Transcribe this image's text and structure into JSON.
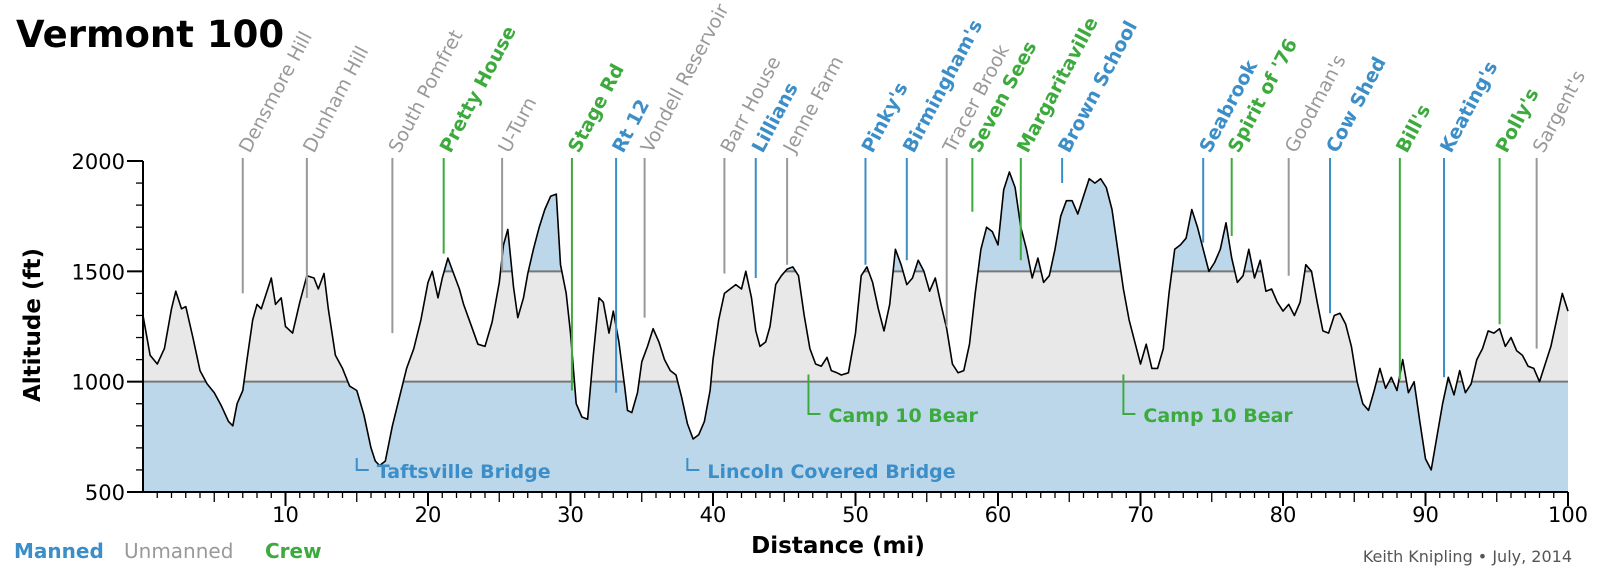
{
  "title": "Vermont 100",
  "credit": "Keith Knipling • July, 2014",
  "legend": [
    {
      "label": "Manned",
      "color": "#3b8ec8",
      "bold": true
    },
    {
      "label": "Unmanned",
      "color": "#999999",
      "bold": false
    },
    {
      "label": "Crew",
      "color": "#3daa3d",
      "bold": true
    }
  ],
  "colors": {
    "manned": "#3b8ec8",
    "unmanned": "#999999",
    "crew": "#3daa3d",
    "fill_blue": "#bdd7ea",
    "fill_gray": "#e8e8e8",
    "band_line": "#777777"
  },
  "chart_data": {
    "type": "area",
    "title": "Vermont 100",
    "xlabel": "Distance  (mi)",
    "ylabel": "Altitude  (ft)",
    "xlim": [
      0,
      100
    ],
    "ylim": [
      500,
      2000
    ],
    "xticks": [
      10,
      20,
      30,
      40,
      50,
      60,
      70,
      80,
      90,
      100
    ],
    "yticks": [
      500,
      1000,
      1500,
      2000
    ],
    "x_minor_step": 1,
    "y_minor_step": 100,
    "bands": [
      1000,
      1500
    ],
    "profile": [
      [
        0,
        1300
      ],
      [
        0.5,
        1120
      ],
      [
        1,
        1080
      ],
      [
        1.5,
        1150
      ],
      [
        2,
        1330
      ],
      [
        2.3,
        1410
      ],
      [
        2.7,
        1330
      ],
      [
        3,
        1340
      ],
      [
        3.5,
        1200
      ],
      [
        4,
        1050
      ],
      [
        4.5,
        990
      ],
      [
        5,
        950
      ],
      [
        5.5,
        890
      ],
      [
        6,
        820
      ],
      [
        6.3,
        800
      ],
      [
        6.6,
        900
      ],
      [
        7,
        960
      ],
      [
        7.3,
        1100
      ],
      [
        7.7,
        1280
      ],
      [
        8,
        1350
      ],
      [
        8.3,
        1330
      ],
      [
        8.7,
        1410
      ],
      [
        9,
        1470
      ],
      [
        9.3,
        1350
      ],
      [
        9.7,
        1380
      ],
      [
        10,
        1250
      ],
      [
        10.5,
        1220
      ],
      [
        11,
        1360
      ],
      [
        11.5,
        1480
      ],
      [
        12,
        1470
      ],
      [
        12.3,
        1420
      ],
      [
        12.7,
        1490
      ],
      [
        13,
        1330
      ],
      [
        13.5,
        1120
      ],
      [
        14,
        1060
      ],
      [
        14.5,
        980
      ],
      [
        15,
        960
      ],
      [
        15.5,
        850
      ],
      [
        16,
        700
      ],
      [
        16.3,
        640
      ],
      [
        16.6,
        620
      ],
      [
        17,
        640
      ],
      [
        17.5,
        800
      ],
      [
        18,
        930
      ],
      [
        18.5,
        1060
      ],
      [
        19,
        1150
      ],
      [
        19.5,
        1280
      ],
      [
        20,
        1450
      ],
      [
        20.3,
        1500
      ],
      [
        20.7,
        1380
      ],
      [
        21,
        1470
      ],
      [
        21.4,
        1560
      ],
      [
        21.8,
        1490
      ],
      [
        22.2,
        1420
      ],
      [
        22.5,
        1350
      ],
      [
        23,
        1260
      ],
      [
        23.5,
        1170
      ],
      [
        24,
        1160
      ],
      [
        24.5,
        1270
      ],
      [
        25,
        1450
      ],
      [
        25.3,
        1620
      ],
      [
        25.6,
        1690
      ],
      [
        26,
        1430
      ],
      [
        26.3,
        1290
      ],
      [
        26.7,
        1380
      ],
      [
        27,
        1490
      ],
      [
        27.4,
        1600
      ],
      [
        27.8,
        1700
      ],
      [
        28.2,
        1780
      ],
      [
        28.6,
        1840
      ],
      [
        29,
        1850
      ],
      [
        29.3,
        1530
      ],
      [
        29.7,
        1400
      ],
      [
        30,
        1220
      ],
      [
        30.4,
        900
      ],
      [
        30.8,
        840
      ],
      [
        31.2,
        830
      ],
      [
        31.6,
        1120
      ],
      [
        32,
        1380
      ],
      [
        32.3,
        1360
      ],
      [
        32.7,
        1220
      ],
      [
        33,
        1320
      ],
      [
        33.4,
        1180
      ],
      [
        33.8,
        980
      ],
      [
        34,
        870
      ],
      [
        34.3,
        860
      ],
      [
        34.7,
        950
      ],
      [
        35,
        1090
      ],
      [
        35.4,
        1160
      ],
      [
        35.8,
        1240
      ],
      [
        36.2,
        1180
      ],
      [
        36.6,
        1100
      ],
      [
        37,
        1050
      ],
      [
        37.4,
        1030
      ],
      [
        37.8,
        930
      ],
      [
        38.2,
        810
      ],
      [
        38.6,
        740
      ],
      [
        39,
        760
      ],
      [
        39.4,
        820
      ],
      [
        39.8,
        960
      ],
      [
        40,
        1100
      ],
      [
        40.4,
        1280
      ],
      [
        40.8,
        1400
      ],
      [
        41.2,
        1420
      ],
      [
        41.6,
        1440
      ],
      [
        42,
        1420
      ],
      [
        42.3,
        1500
      ],
      [
        42.7,
        1380
      ],
      [
        43,
        1230
      ],
      [
        43.3,
        1160
      ],
      [
        43.7,
        1180
      ],
      [
        44,
        1250
      ],
      [
        44.4,
        1440
      ],
      [
        44.8,
        1480
      ],
      [
        45.2,
        1510
      ],
      [
        45.6,
        1520
      ],
      [
        46,
        1480
      ],
      [
        46.4,
        1300
      ],
      [
        46.8,
        1150
      ],
      [
        47.2,
        1080
      ],
      [
        47.6,
        1070
      ],
      [
        48,
        1110
      ],
      [
        48.3,
        1050
      ],
      [
        48.7,
        1040
      ],
      [
        49,
        1030
      ],
      [
        49.5,
        1040
      ],
      [
        50,
        1220
      ],
      [
        50.4,
        1480
      ],
      [
        50.8,
        1520
      ],
      [
        51.2,
        1450
      ],
      [
        51.6,
        1330
      ],
      [
        52,
        1230
      ],
      [
        52.4,
        1350
      ],
      [
        52.8,
        1600
      ],
      [
        53.2,
        1530
      ],
      [
        53.6,
        1440
      ],
      [
        54,
        1470
      ],
      [
        54.4,
        1550
      ],
      [
        54.8,
        1500
      ],
      [
        55.2,
        1410
      ],
      [
        55.6,
        1470
      ],
      [
        56,
        1350
      ],
      [
        56.4,
        1240
      ],
      [
        56.8,
        1080
      ],
      [
        57.2,
        1040
      ],
      [
        57.6,
        1050
      ],
      [
        58,
        1170
      ],
      [
        58.4,
        1400
      ],
      [
        58.8,
        1600
      ],
      [
        59.2,
        1700
      ],
      [
        59.6,
        1680
      ],
      [
        60,
        1620
      ],
      [
        60.4,
        1870
      ],
      [
        60.8,
        1950
      ],
      [
        61.2,
        1880
      ],
      [
        61.6,
        1700
      ],
      [
        62,
        1600
      ],
      [
        62.4,
        1470
      ],
      [
        62.8,
        1560
      ],
      [
        63.2,
        1450
      ],
      [
        63.6,
        1480
      ],
      [
        64,
        1600
      ],
      [
        64.4,
        1750
      ],
      [
        64.8,
        1820
      ],
      [
        65.2,
        1820
      ],
      [
        65.6,
        1760
      ],
      [
        66,
        1840
      ],
      [
        66.4,
        1920
      ],
      [
        66.8,
        1900
      ],
      [
        67.2,
        1920
      ],
      [
        67.6,
        1880
      ],
      [
        68,
        1780
      ],
      [
        68.4,
        1600
      ],
      [
        68.8,
        1420
      ],
      [
        69.2,
        1280
      ],
      [
        69.6,
        1180
      ],
      [
        70,
        1080
      ],
      [
        70.4,
        1170
      ],
      [
        70.8,
        1060
      ],
      [
        71.2,
        1060
      ],
      [
        71.6,
        1150
      ],
      [
        72,
        1400
      ],
      [
        72.4,
        1600
      ],
      [
        72.8,
        1620
      ],
      [
        73.2,
        1650
      ],
      [
        73.6,
        1780
      ],
      [
        74,
        1700
      ],
      [
        74.4,
        1600
      ],
      [
        74.8,
        1500
      ],
      [
        75.2,
        1540
      ],
      [
        75.6,
        1600
      ],
      [
        76,
        1720
      ],
      [
        76.4,
        1560
      ],
      [
        76.8,
        1450
      ],
      [
        77.2,
        1480
      ],
      [
        77.6,
        1600
      ],
      [
        78,
        1470
      ],
      [
        78.4,
        1550
      ],
      [
        78.8,
        1410
      ],
      [
        79.2,
        1420
      ],
      [
        79.6,
        1360
      ],
      [
        80,
        1320
      ],
      [
        80.4,
        1350
      ],
      [
        80.8,
        1300
      ],
      [
        81.2,
        1360
      ],
      [
        81.6,
        1530
      ],
      [
        82,
        1500
      ],
      [
        82.4,
        1360
      ],
      [
        82.8,
        1230
      ],
      [
        83.2,
        1220
      ],
      [
        83.6,
        1300
      ],
      [
        84,
        1310
      ],
      [
        84.4,
        1260
      ],
      [
        84.8,
        1160
      ],
      [
        85.2,
        1000
      ],
      [
        85.6,
        900
      ],
      [
        86,
        870
      ],
      [
        86.4,
        960
      ],
      [
        86.8,
        1060
      ],
      [
        87.2,
        970
      ],
      [
        87.6,
        1020
      ],
      [
        88,
        960
      ],
      [
        88.4,
        1100
      ],
      [
        88.8,
        950
      ],
      [
        89.2,
        1000
      ],
      [
        89.6,
        820
      ],
      [
        90,
        650
      ],
      [
        90.4,
        600
      ],
      [
        90.8,
        750
      ],
      [
        91.2,
        900
      ],
      [
        91.6,
        1020
      ],
      [
        92,
        940
      ],
      [
        92.4,
        1050
      ],
      [
        92.8,
        950
      ],
      [
        93.2,
        990
      ],
      [
        93.6,
        1100
      ],
      [
        94,
        1150
      ],
      [
        94.4,
        1230
      ],
      [
        94.8,
        1220
      ],
      [
        95.2,
        1240
      ],
      [
        95.6,
        1160
      ],
      [
        96,
        1200
      ],
      [
        96.4,
        1140
      ],
      [
        96.8,
        1120
      ],
      [
        97.2,
        1070
      ],
      [
        97.6,
        1060
      ],
      [
        98,
        1000
      ],
      [
        98.4,
        1080
      ],
      [
        98.8,
        1160
      ],
      [
        99.2,
        1280
      ],
      [
        99.6,
        1400
      ],
      [
        100,
        1320
      ]
    ],
    "stations": [
      {
        "name": "Densmore Hill",
        "mile": 7.0,
        "type": "unmanned",
        "lineFrom": 1400
      },
      {
        "name": "Dunham Hill",
        "mile": 11.5,
        "type": "unmanned",
        "lineFrom": 1380
      },
      {
        "name": "South Pomfret",
        "mile": 17.5,
        "type": "unmanned",
        "lineFrom": 1220
      },
      {
        "name": "Pretty House",
        "mile": 21.1,
        "type": "crew",
        "lineFrom": 1580
      },
      {
        "name": "U-Turn",
        "mile": 25.2,
        "type": "unmanned",
        "lineFrom": 1500
      },
      {
        "name": "Stage Rd",
        "mile": 30.1,
        "type": "crew",
        "lineFrom": 960
      },
      {
        "name": "Rt 12",
        "mile": 33.2,
        "type": "manned",
        "lineFrom": 950
      },
      {
        "name": "Vondell Reservoir",
        "mile": 35.2,
        "type": "unmanned",
        "lineFrom": 1290
      },
      {
        "name": "Barr House",
        "mile": 40.8,
        "type": "unmanned",
        "lineFrom": 1490
      },
      {
        "name": "Lillians",
        "mile": 43.0,
        "type": "manned",
        "lineFrom": 1470
      },
      {
        "name": "Jenne Farm",
        "mile": 45.2,
        "type": "unmanned",
        "lineFrom": 1530
      },
      {
        "name": "Pinky's",
        "mile": 50.7,
        "type": "manned",
        "lineFrom": 1530
      },
      {
        "name": "Birmingham's",
        "mile": 53.6,
        "type": "manned",
        "lineFrom": 1550
      },
      {
        "name": "Tracer Brook",
        "mile": 56.4,
        "type": "unmanned",
        "lineFrom": 1250
      },
      {
        "name": "Seven Sees",
        "mile": 58.2,
        "type": "crew",
        "lineFrom": 1770
      },
      {
        "name": "Margaritaville",
        "mile": 61.6,
        "type": "crew",
        "lineFrom": 1550
      },
      {
        "name": "Brown School",
        "mile": 64.5,
        "type": "manned",
        "lineFrom": 1900
      },
      {
        "name": "Seabrook",
        "mile": 74.4,
        "type": "manned",
        "lineFrom": 1630
      },
      {
        "name": "Spirit of '76",
        "mile": 76.4,
        "type": "crew",
        "lineFrom": 1660
      },
      {
        "name": "Goodman's",
        "mile": 80.4,
        "type": "unmanned",
        "lineFrom": 1480
      },
      {
        "name": "Cow Shed",
        "mile": 83.3,
        "type": "manned",
        "lineFrom": 1310
      },
      {
        "name": "Bill's",
        "mile": 88.2,
        "type": "crew",
        "lineFrom": 1010
      },
      {
        "name": "Keating's",
        "mile": 91.3,
        "type": "manned",
        "lineFrom": 1020
      },
      {
        "name": "Polly's",
        "mile": 95.2,
        "type": "crew",
        "lineFrom": 1260
      },
      {
        "name": "Sargent's",
        "mile": 97.8,
        "type": "unmanned",
        "lineFrom": 1150
      }
    ],
    "low_labels": [
      {
        "name": "Taftsville Bridge",
        "mile": 15.0,
        "type": "manned",
        "alt": 600
      },
      {
        "name": "Lincoln Covered Bridge",
        "mile": 38.2,
        "type": "manned",
        "alt": 600
      },
      {
        "name": "Camp 10 Bear",
        "mile": 46.7,
        "type": "crew",
        "alt": 860
      },
      {
        "name": "Camp 10 Bear",
        "mile": 68.8,
        "type": "crew",
        "alt": 860
      }
    ]
  }
}
